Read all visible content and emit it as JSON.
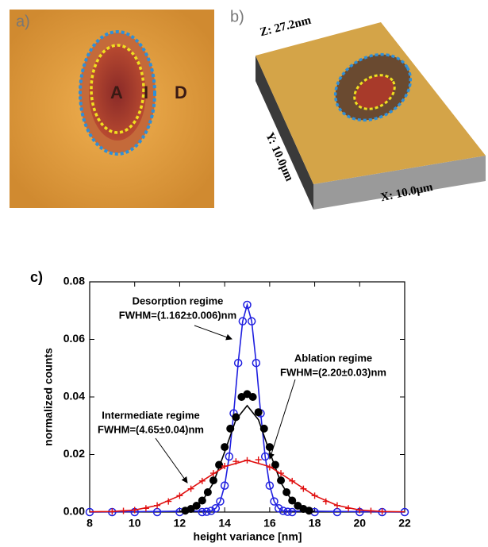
{
  "panels": {
    "a": {
      "label": "a)",
      "regions": [
        "A",
        "I",
        "D"
      ]
    },
    "b": {
      "label": "b)",
      "z_axis": "Z: 27.2nm",
      "y_axis": "Y: 10.0μm",
      "x_axis": "X: 10.0μm"
    }
  },
  "chart_data": {
    "type": "scatter",
    "title": "c)",
    "xlabel": "height variance [nm]",
    "ylabel": "normalized counts",
    "xlim": [
      8,
      22
    ],
    "ylim": [
      0,
      0.08
    ],
    "xticks": [
      8,
      10,
      12,
      14,
      16,
      18,
      20,
      22
    ],
    "yticks": [
      {
        "value": 0,
        "label": "0.00"
      },
      {
        "value": 0.02,
        "label": "0.02"
      },
      {
        "value": 0.04,
        "label": "0.04"
      },
      {
        "value": 0.06,
        "label": "0.06"
      },
      {
        "value": 0.08,
        "label": "0.08"
      }
    ],
    "series": [
      {
        "color": "#1f1fe0",
        "marker": "open-circle",
        "x": [
          8,
          9,
          10,
          11,
          12,
          13,
          13.2,
          13.4,
          13.6,
          13.8,
          14,
          14.2,
          14.4,
          14.6,
          14.8,
          15,
          15.2,
          15.4,
          15.6,
          15.8,
          16,
          16.2,
          16.4,
          16.6,
          16.8,
          17,
          18,
          19,
          20,
          21,
          22
        ],
        "values": [
          0,
          0,
          0,
          0,
          0,
          0,
          0.0001,
          0.0004,
          0.0013,
          0.0037,
          0.0092,
          0.0193,
          0.0343,
          0.0518,
          0.0663,
          0.072,
          0.0663,
          0.0518,
          0.0343,
          0.0193,
          0.0092,
          0.0037,
          0.0013,
          0.0004,
          0.0001,
          0,
          0,
          0,
          0,
          0,
          0
        ]
      },
      {
        "color": "#1f1fe0",
        "marker": "line",
        "x": [
          8,
          13.4,
          13.6,
          13.8,
          14,
          14.2,
          14.4,
          14.6,
          14.8,
          15,
          15.2,
          15.4,
          15.6,
          15.8,
          16,
          16.2,
          16.4,
          16.6,
          22
        ],
        "values": [
          0,
          0.0004,
          0.0013,
          0.0037,
          0.0092,
          0.0193,
          0.0343,
          0.0518,
          0.0663,
          0.072,
          0.0663,
          0.0518,
          0.0343,
          0.0193,
          0.0092,
          0.0037,
          0.0013,
          0.0004,
          0
        ]
      },
      {
        "color": "#000000",
        "marker": "filled-circle",
        "x": [
          12.25,
          12.5,
          12.75,
          13,
          13.25,
          13.5,
          13.75,
          14,
          14.25,
          14.5,
          14.75,
          15,
          15.25,
          15.5,
          15.75,
          16,
          16.25,
          16.5,
          16.75,
          17,
          17.25,
          17.5,
          17.75
        ],
        "values": [
          0.0005,
          0.0011,
          0.0022,
          0.004,
          0.0069,
          0.011,
          0.0164,
          0.0226,
          0.029,
          0.033,
          0.04,
          0.041,
          0.04,
          0.0347,
          0.029,
          0.0226,
          0.0164,
          0.011,
          0.0069,
          0.004,
          0.0022,
          0.0011,
          0.0005
        ]
      },
      {
        "color": "#000000",
        "marker": "line",
        "x": [
          12,
          12.5,
          13,
          13.5,
          14,
          14.5,
          15,
          15.5,
          16,
          16.5,
          17,
          17.5,
          18
        ],
        "values": [
          0.0002,
          0.001,
          0.0037,
          0.0102,
          0.0209,
          0.0321,
          0.037,
          0.0321,
          0.0209,
          0.0102,
          0.0037,
          0.001,
          0.0002
        ]
      },
      {
        "color": "#e01010",
        "marker": "plus",
        "x": [
          9,
          9.5,
          10,
          10.5,
          11,
          11.5,
          12,
          12.5,
          13,
          13.5,
          14,
          14.5,
          15,
          15.5,
          16,
          16.5,
          17,
          17.5,
          18,
          18.5,
          19,
          19.5,
          20,
          20.5,
          21
        ],
        "values": [
          0.0002,
          0.0004,
          0.0007,
          0.0013,
          0.0023,
          0.0037,
          0.0057,
          0.0081,
          0.0108,
          0.0135,
          0.016,
          0.0176,
          0.018,
          0.0182,
          0.0156,
          0.0135,
          0.0108,
          0.0081,
          0.0057,
          0.0037,
          0.0023,
          0.0013,
          0.0007,
          0.0004,
          0.0002
        ]
      },
      {
        "color": "#e01010",
        "marker": "line",
        "x": [
          8,
          9,
          10,
          11,
          12,
          13,
          14,
          15,
          16,
          17,
          18,
          19,
          20,
          21,
          22
        ],
        "values": [
          0.0001,
          0.0002,
          0.0007,
          0.0023,
          0.0057,
          0.0108,
          0.0158,
          0.018,
          0.0158,
          0.0108,
          0.0057,
          0.0023,
          0.0007,
          0.0002,
          0.0001
        ]
      }
    ],
    "annotations": [
      [
        "Desorption regime",
        "FWHM=(1.162±0.006)nm"
      ],
      [
        "Ablation regime",
        "FWHM=(2.20±0.03)nm"
      ],
      [
        "Intermediate regime",
        "FWHM=(4.65±0.04)nm"
      ]
    ]
  }
}
